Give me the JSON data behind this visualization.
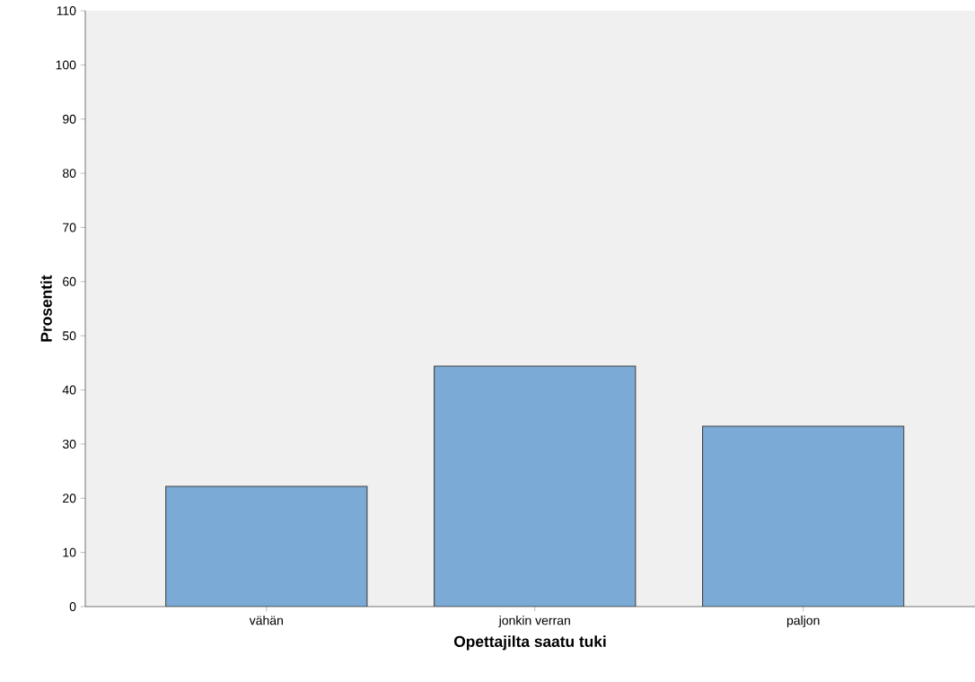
{
  "chart_data": {
    "type": "bar",
    "xlabel": "Opettajilta saatu tuki",
    "ylabel": "Prosentit",
    "categories": [
      "vähän",
      "jonkin verran",
      "paljon"
    ],
    "values": [
      22.2,
      44.4,
      33.3
    ],
    "color": "#7aaad5",
    "ylim": [
      0,
      110
    ],
    "yticks": [
      0,
      10,
      20,
      30,
      40,
      50,
      60,
      70,
      80,
      90,
      100,
      110
    ]
  }
}
